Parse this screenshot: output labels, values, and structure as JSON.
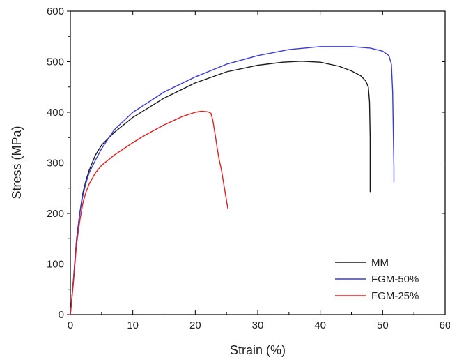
{
  "chart_data": {
    "type": "line",
    "title": "",
    "xlabel": "Strain (%)",
    "ylabel": "Stress (MPa)",
    "xlim": [
      0,
      60
    ],
    "ylim": [
      0,
      600
    ],
    "xticks": [
      "0",
      "10",
      "20",
      "30",
      "40",
      "50",
      "60"
    ],
    "yticks": [
      "0",
      "100",
      "200",
      "300",
      "400",
      "500",
      "600"
    ],
    "legend_position": "bottom-right",
    "grid": false,
    "series": [
      {
        "name": "MM",
        "color": "#1a1a1a",
        "x": [
          0,
          0.5,
          1,
          1.5,
          2,
          2.5,
          3,
          4,
          5,
          7,
          10,
          15,
          20,
          25,
          30,
          34,
          37,
          40,
          43,
          45,
          46.5,
          47.3,
          47.7,
          47.9,
          48,
          48,
          48
        ],
        "y": [
          0,
          70,
          150,
          200,
          240,
          265,
          285,
          315,
          335,
          360,
          390,
          428,
          458,
          480,
          493,
          499,
          501,
          499,
          491,
          482,
          472,
          462,
          450,
          420,
          350,
          280,
          243
        ]
      },
      {
        "name": "FGM-50%",
        "color": "#3a3adc",
        "x": [
          0,
          0.5,
          1,
          1.5,
          2,
          2.5,
          3,
          4,
          5,
          7,
          10,
          15,
          20,
          25,
          30,
          35,
          40,
          45,
          48,
          50,
          51,
          51.4,
          51.6,
          51.7,
          51.8,
          51.8
        ],
        "y": [
          0,
          70,
          150,
          200,
          235,
          260,
          280,
          305,
          328,
          365,
          400,
          440,
          470,
          495,
          512,
          524,
          530,
          530,
          527,
          521,
          512,
          495,
          440,
          360,
          290,
          262
        ]
      },
      {
        "name": "FGM-25%",
        "color": "#e02020",
        "x": [
          0,
          0.5,
          1,
          1.5,
          2,
          2.5,
          3,
          4,
          5,
          7,
          10,
          12,
          15,
          18,
          20,
          21,
          22,
          22.5,
          22.8,
          23.2,
          23.5,
          23.8,
          24.2,
          24.6,
          25,
          25.2
        ],
        "y": [
          0,
          65,
          140,
          185,
          220,
          242,
          258,
          280,
          295,
          315,
          340,
          355,
          375,
          392,
          400,
          402,
          401,
          398,
          385,
          355,
          330,
          308,
          285,
          255,
          225,
          210
        ]
      }
    ]
  }
}
